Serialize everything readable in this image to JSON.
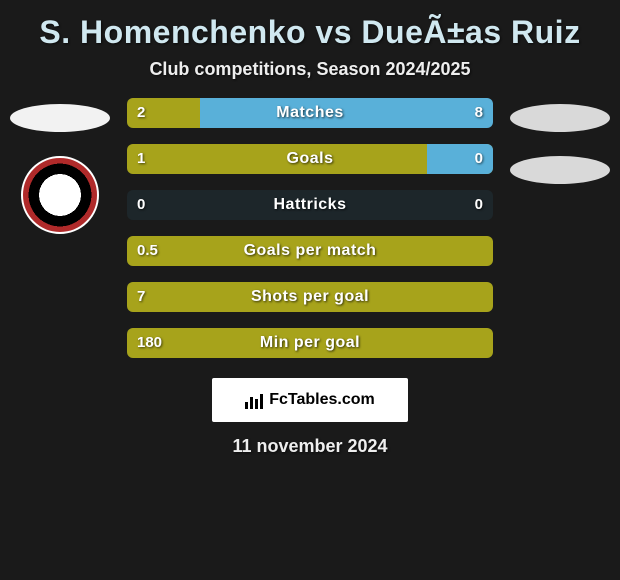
{
  "title": "S. Homenchenko vs DueÃ±as Ruiz",
  "subtitle": "Club competitions, Season 2024/2025",
  "date": "11 november 2024",
  "branding_text": "FcTables.com",
  "colors": {
    "player1": "#a7a31b",
    "player2": "#1d262a",
    "accent": "#59b0d9",
    "background": "#1a1a1a",
    "title_color": "#d0e8f0"
  },
  "sides": {
    "left_ellipse": "#f2f2f2",
    "right_ellipse": "#d9d9d9"
  },
  "rows": [
    {
      "label": "Matches",
      "left_val": "2",
      "right_val": "8",
      "left_pct": 20,
      "right_pct": 80,
      "right_color": "accent"
    },
    {
      "label": "Goals",
      "left_val": "1",
      "right_val": "0",
      "left_pct": 100,
      "right_pct": 18,
      "right_color": "accent"
    },
    {
      "label": "Hattricks",
      "left_val": "0",
      "right_val": "0",
      "left_pct": 0,
      "right_pct": 0,
      "right_color": "player2"
    },
    {
      "label": "Goals per match",
      "left_val": "0.5",
      "right_val": "",
      "left_pct": 100,
      "right_pct": 0,
      "right_color": "player2"
    },
    {
      "label": "Shots per goal",
      "left_val": "7",
      "right_val": "",
      "left_pct": 100,
      "right_pct": 0,
      "right_color": "player2"
    },
    {
      "label": "Min per goal",
      "left_val": "180",
      "right_val": "",
      "left_pct": 100,
      "right_pct": 0,
      "right_color": "player2"
    }
  ]
}
